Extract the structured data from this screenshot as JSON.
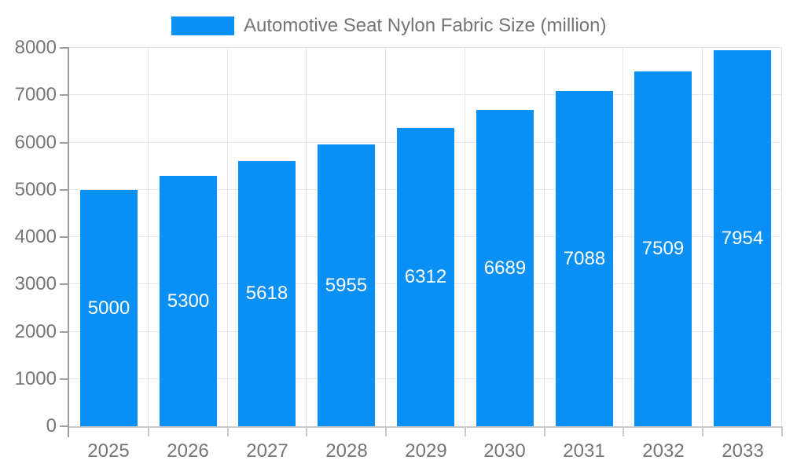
{
  "legend": {
    "label": "Automotive Seat Nylon Fabric Size (million)"
  },
  "chart_data": {
    "type": "bar",
    "title": "Automotive Seat Nylon Fabric Size (million)",
    "categories": [
      "2025",
      "2026",
      "2027",
      "2028",
      "2029",
      "2030",
      "2031",
      "2032",
      "2033"
    ],
    "values": [
      5000,
      5300,
      5618,
      5955,
      6312,
      6689,
      7088,
      7509,
      7954
    ],
    "xlabel": "",
    "ylabel": "",
    "ylim": [
      0,
      8000
    ],
    "yticks": [
      0,
      1000,
      2000,
      3000,
      4000,
      5000,
      6000,
      7000,
      8000
    ],
    "grid": true,
    "legend_position": "top",
    "value_labels": "inside-center"
  },
  "colors": {
    "bar": "#0a90f4",
    "grid": "#e6e6e6",
    "y_axis": "#9e9e9e",
    "x_axis": "#c9c9c9",
    "text": "#757575",
    "value_label": "#ffffff",
    "background": "#ffffff"
  }
}
